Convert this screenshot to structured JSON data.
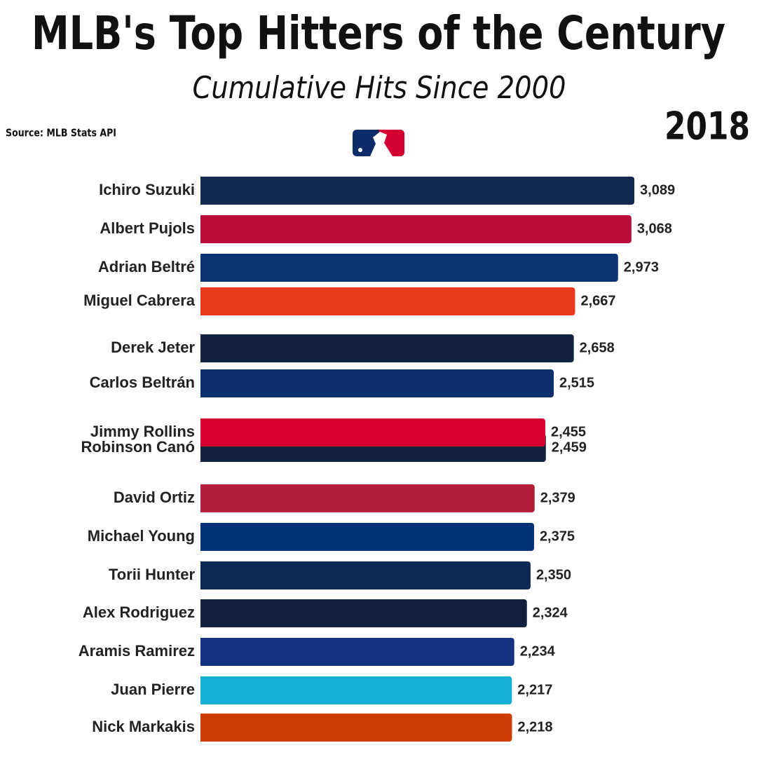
{
  "chart_data": {
    "type": "bar",
    "orientation": "horizontal",
    "title": "MLB's Top Hitters of the Century",
    "subtitle": "Cumulative Hits Since 2000",
    "source": "Source: MLB Stats API",
    "year": "2018",
    "categories": [
      "Ichiro Suzuki",
      "Albert Pujols",
      "Adrian Beltré",
      "Miguel Cabrera",
      "Derek Jeter",
      "Carlos Beltrán",
      "Jimmy Rollins",
      "Robinson Canó",
      "David Ortiz",
      "Michael Young",
      "Torii Hunter",
      "Alex Rodriguez",
      "Aramis Ramirez",
      "Juan Pierre",
      "Nick Markakis"
    ],
    "values": [
      3089,
      3068,
      2973,
      2667,
      2658,
      2515,
      2455,
      2459,
      2379,
      2375,
      2350,
      2324,
      2234,
      2217,
      2218
    ],
    "value_labels": [
      "3,089",
      "3,068",
      "2,973",
      "2,667",
      "2,658",
      "2,515",
      "2,455",
      "2,459",
      "2,379",
      "2,375",
      "2,350",
      "2,324",
      "2,234",
      "2,217",
      "2,218"
    ],
    "colors": [
      "#132a4f",
      "#ba0c3a",
      "#0c3473",
      "#e8391d",
      "#13223f",
      "#0c2f6e",
      "#d6002e",
      "#13223f",
      "#b31f3a",
      "#003278",
      "#0a2a55",
      "#12213e",
      "#14317f",
      "#15afd8",
      "#ce3c08"
    ]
  }
}
